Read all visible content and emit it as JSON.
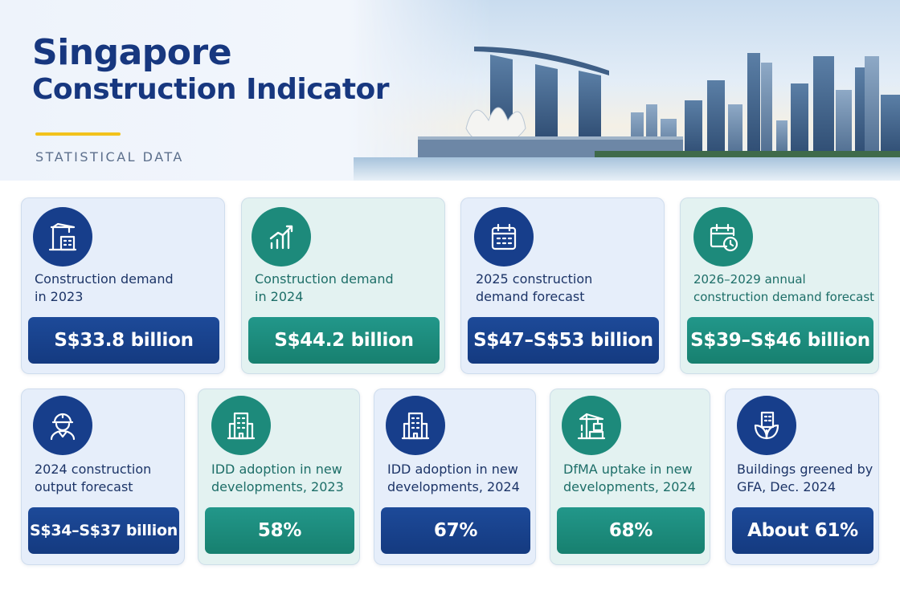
{
  "header": {
    "title_line1": "Singapore",
    "title_line2": "Construction Indicator",
    "subtitle": "STATISTICAL DATA"
  },
  "colors": {
    "navy": "#173e8b",
    "teal": "#1d8a7b",
    "accent_yellow": "#f2c21b",
    "title_blue": "#17377f"
  },
  "cards_row1": [
    {
      "icon": "crane-building-icon",
      "label_line1": "Construction demand",
      "label_line2": "in 2023",
      "value": "S$33.8 billion",
      "theme": "blue"
    },
    {
      "icon": "growth-chart-icon",
      "label_line1": "Construction demand",
      "label_line2": "in 2024",
      "value": "S$44.2 billion",
      "theme": "teal"
    },
    {
      "icon": "calendar-icon",
      "label_line1": "2025 construction",
      "label_line2": "demand forecast",
      "value": "S$47–S$53 billion",
      "theme": "blue"
    },
    {
      "icon": "calendar-clock-icon",
      "label_line1": "2026–2029 annual",
      "label_line2": "construction demand forecast",
      "value": "S$39–S$46 billion",
      "theme": "teal"
    }
  ],
  "cards_row2": [
    {
      "icon": "construction-worker-icon",
      "label_line1": "2024 construction",
      "label_line2": "output forecast",
      "value": "S$34–S$37 billion",
      "theme": "blue"
    },
    {
      "icon": "office-building-icon",
      "label_line1": "IDD adoption in new",
      "label_line2": "developments, 2023",
      "value": "58%",
      "theme": "teal"
    },
    {
      "icon": "office-building-icon",
      "label_line1": "IDD adoption in new",
      "label_line2": "developments, 2024",
      "value": "67%",
      "theme": "blue"
    },
    {
      "icon": "prefab-crane-icon",
      "label_line1": "DfMA uptake in new",
      "label_line2": "developments, 2024",
      "value": "68%",
      "theme": "teal"
    },
    {
      "icon": "green-building-icon",
      "label_line1": "Buildings greened by",
      "label_line2": "GFA, Dec. 2024",
      "value": "About 61%",
      "theme": "blue"
    }
  ]
}
